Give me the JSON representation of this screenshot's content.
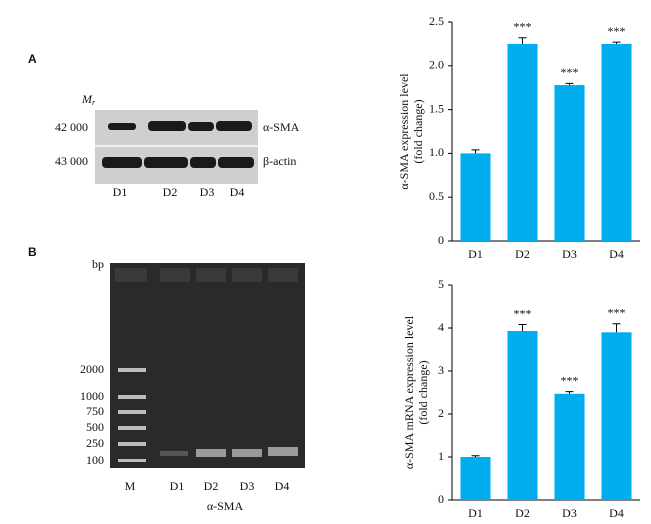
{
  "panel_labels": [
    "A",
    "B"
  ],
  "blot": {
    "mr_label": {
      "main": "M",
      "sub": "r"
    },
    "row_weights": [
      "42 000",
      "43 000"
    ],
    "row_proteins": [
      "α-SMA",
      "β-actin"
    ],
    "lanes": [
      "D1",
      "D2",
      "D3",
      "D4"
    ]
  },
  "gel": {
    "unit": "bp",
    "ladder": [
      "2000",
      "1000",
      "750",
      "500",
      "250",
      "100"
    ],
    "lanes": [
      "M",
      "D1",
      "D2",
      "D3",
      "D4"
    ],
    "target": "α-SMA"
  },
  "chart_data": [
    {
      "type": "bar",
      "ylabel": [
        "α-SMA expression level",
        "(fold change)"
      ],
      "categories": [
        "D1",
        "D2",
        "D3",
        "D4"
      ],
      "values": [
        1.0,
        2.25,
        1.78,
        2.25
      ],
      "errors": [
        0.04,
        0.07,
        0.02,
        0.02
      ],
      "annotations": [
        null,
        "***",
        "***",
        "***"
      ],
      "color": "#00aeef",
      "ylim": [
        0,
        2.5
      ],
      "yticks": [
        0,
        0.5,
        {
          "value": 1,
          "label": "1.0"
        },
        1.5,
        {
          "value": 2,
          "label": "2.0"
        },
        2.5
      ]
    },
    {
      "type": "bar",
      "ylabel": [
        "α-SMA mRNA expression level",
        "(fold change)"
      ],
      "categories": [
        "D1",
        "D2",
        "D3",
        "D4"
      ],
      "values": [
        1.0,
        3.93,
        2.47,
        3.9
      ],
      "errors": [
        0.03,
        0.15,
        0.05,
        0.2
      ],
      "annotations": [
        null,
        "***",
        "***",
        "***"
      ],
      "color": "#00aeef",
      "ylim": [
        0,
        5
      ],
      "yticks": [
        0,
        1,
        2,
        3,
        4,
        5
      ]
    }
  ]
}
